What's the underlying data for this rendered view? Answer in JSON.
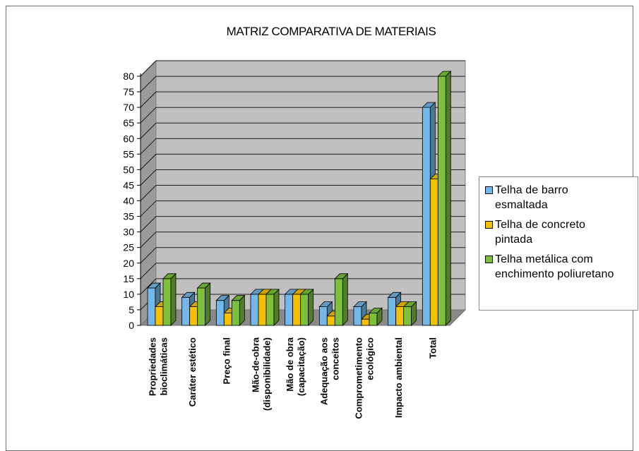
{
  "chart_data": {
    "type": "bar",
    "title": "MATRIZ COMPARATIVA DE MATERIAIS",
    "categories": [
      [
        "Propriedades",
        "bioclimáticas"
      ],
      [
        "Caráter estético"
      ],
      [
        "Preço final"
      ],
      [
        "Mão-de-obra",
        "(disponibilidade)"
      ],
      [
        "Mão de obra",
        "(capacitação)"
      ],
      [
        "Adequação aos",
        "conceitos"
      ],
      [
        "Comprometimento",
        "ecológico"
      ],
      [
        "Impacto ambiental"
      ],
      [
        "Total"
      ]
    ],
    "series": [
      {
        "name": "Telha de barro esmaltada",
        "name_lines": [
          "Telha de barro",
          "esmaltada"
        ],
        "color": "#73b8e8",
        "values": [
          12,
          9,
          8,
          10,
          10,
          6,
          6,
          9,
          70
        ]
      },
      {
        "name": "Telha de concreto pintada",
        "name_lines": [
          "Telha de concreto",
          "pintada"
        ],
        "color": "#f4c000",
        "values": [
          6,
          6,
          4,
          10,
          10,
          3,
          2,
          6,
          47
        ]
      },
      {
        "name": "Telha metálica com enchimento poliuretano",
        "name_lines": [
          "Telha metálica com",
          "enchimento poliuretano"
        ],
        "color": "#7dc13a",
        "values": [
          15,
          12,
          8,
          10,
          10,
          15,
          4,
          6,
          80
        ]
      }
    ],
    "yticks": [
      0,
      5,
      10,
      15,
      20,
      25,
      30,
      35,
      40,
      45,
      50,
      55,
      60,
      65,
      70,
      75,
      80
    ],
    "ylim": [
      0,
      80
    ],
    "grid": true,
    "legend": "right"
  }
}
